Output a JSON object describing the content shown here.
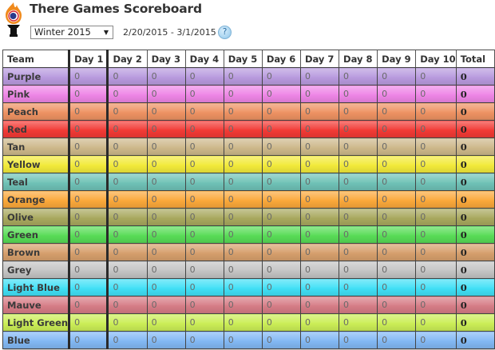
{
  "header": {
    "title": "There Games Scoreboard",
    "season_select": {
      "value": "Winter 2015",
      "arrow": "▼"
    },
    "date_range": "2/20/2015 - 3/1/2015",
    "help_label": "?"
  },
  "icons": {
    "logo": "torch-logo-icon",
    "help": "help-icon",
    "dropdown": "chevron-down-icon"
  },
  "table": {
    "columns": [
      "Team",
      "Day 1",
      "Day 2",
      "Day 3",
      "Day 4",
      "Day 5",
      "Day 6",
      "Day 7",
      "Day 8",
      "Day 9",
      "Day 10",
      "Total"
    ],
    "rows": [
      {
        "team": "Purple",
        "color": "#b89ade",
        "scores": [
          "0",
          "0",
          "0",
          "0",
          "0",
          "0",
          "0",
          "0",
          "0",
          "0"
        ],
        "total": "0"
      },
      {
        "team": "Pink",
        "color": "#ee86e6",
        "scores": [
          "0",
          "0",
          "0",
          "0",
          "0",
          "0",
          "0",
          "0",
          "0",
          "0"
        ],
        "total": "0"
      },
      {
        "team": "Peach",
        "color": "#ee9262",
        "scores": [
          "0",
          "0",
          "0",
          "0",
          "0",
          "0",
          "0",
          "0",
          "0",
          "0"
        ],
        "total": "0"
      },
      {
        "team": "Red",
        "color": "#f23a35",
        "scores": [
          "0",
          "0",
          "0",
          "0",
          "0",
          "0",
          "0",
          "0",
          "0",
          "0"
        ],
        "total": "0"
      },
      {
        "team": "Tan",
        "color": "#cdb88a",
        "scores": [
          "0",
          "0",
          "0",
          "0",
          "0",
          "0",
          "0",
          "0",
          "0",
          "0"
        ],
        "total": "0"
      },
      {
        "team": "Yellow",
        "color": "#f2ea3a",
        "scores": [
          "0",
          "0",
          "0",
          "0",
          "0",
          "0",
          "0",
          "0",
          "0",
          "0"
        ],
        "total": "0"
      },
      {
        "team": "Teal",
        "color": "#6fc2b6",
        "scores": [
          "0",
          "0",
          "0",
          "0",
          "0",
          "0",
          "0",
          "0",
          "0",
          "0"
        ],
        "total": "0"
      },
      {
        "team": "Orange",
        "color": "#fba83a",
        "scores": [
          "0",
          "0",
          "0",
          "0",
          "0",
          "0",
          "0",
          "0",
          "0",
          "0"
        ],
        "total": "0"
      },
      {
        "team": "Olive",
        "color": "#a8a85e",
        "scores": [
          "0",
          "0",
          "0",
          "0",
          "0",
          "0",
          "0",
          "0",
          "0",
          "0"
        ],
        "total": "0"
      },
      {
        "team": "Green",
        "color": "#58dc56",
        "scores": [
          "0",
          "0",
          "0",
          "0",
          "0",
          "0",
          "0",
          "0",
          "0",
          "0"
        ],
        "total": "0"
      },
      {
        "team": "Brown",
        "color": "#d69f6c",
        "scores": [
          "0",
          "0",
          "0",
          "0",
          "0",
          "0",
          "0",
          "0",
          "0",
          "0"
        ],
        "total": "0"
      },
      {
        "team": "Grey",
        "color": "#c4c4c4",
        "scores": [
          "0",
          "0",
          "0",
          "0",
          "0",
          "0",
          "0",
          "0",
          "0",
          "0"
        ],
        "total": "0"
      },
      {
        "team": "Light Blue",
        "color": "#40e0f6",
        "scores": [
          "0",
          "0",
          "0",
          "0",
          "0",
          "0",
          "0",
          "0",
          "0",
          "0"
        ],
        "total": "0"
      },
      {
        "team": "Mauve",
        "color": "#d67c86",
        "scores": [
          "0",
          "0",
          "0",
          "0",
          "0",
          "0",
          "0",
          "0",
          "0",
          "0"
        ],
        "total": "0"
      },
      {
        "team": "Light Green",
        "color": "#cbee56",
        "scores": [
          "0",
          "0",
          "0",
          "0",
          "0",
          "0",
          "0",
          "0",
          "0",
          "0"
        ],
        "total": "0"
      },
      {
        "team": "Blue",
        "color": "#82b8f4",
        "scores": [
          "0",
          "0",
          "0",
          "0",
          "0",
          "0",
          "0",
          "0",
          "0",
          "0"
        ],
        "total": "0"
      }
    ]
  }
}
